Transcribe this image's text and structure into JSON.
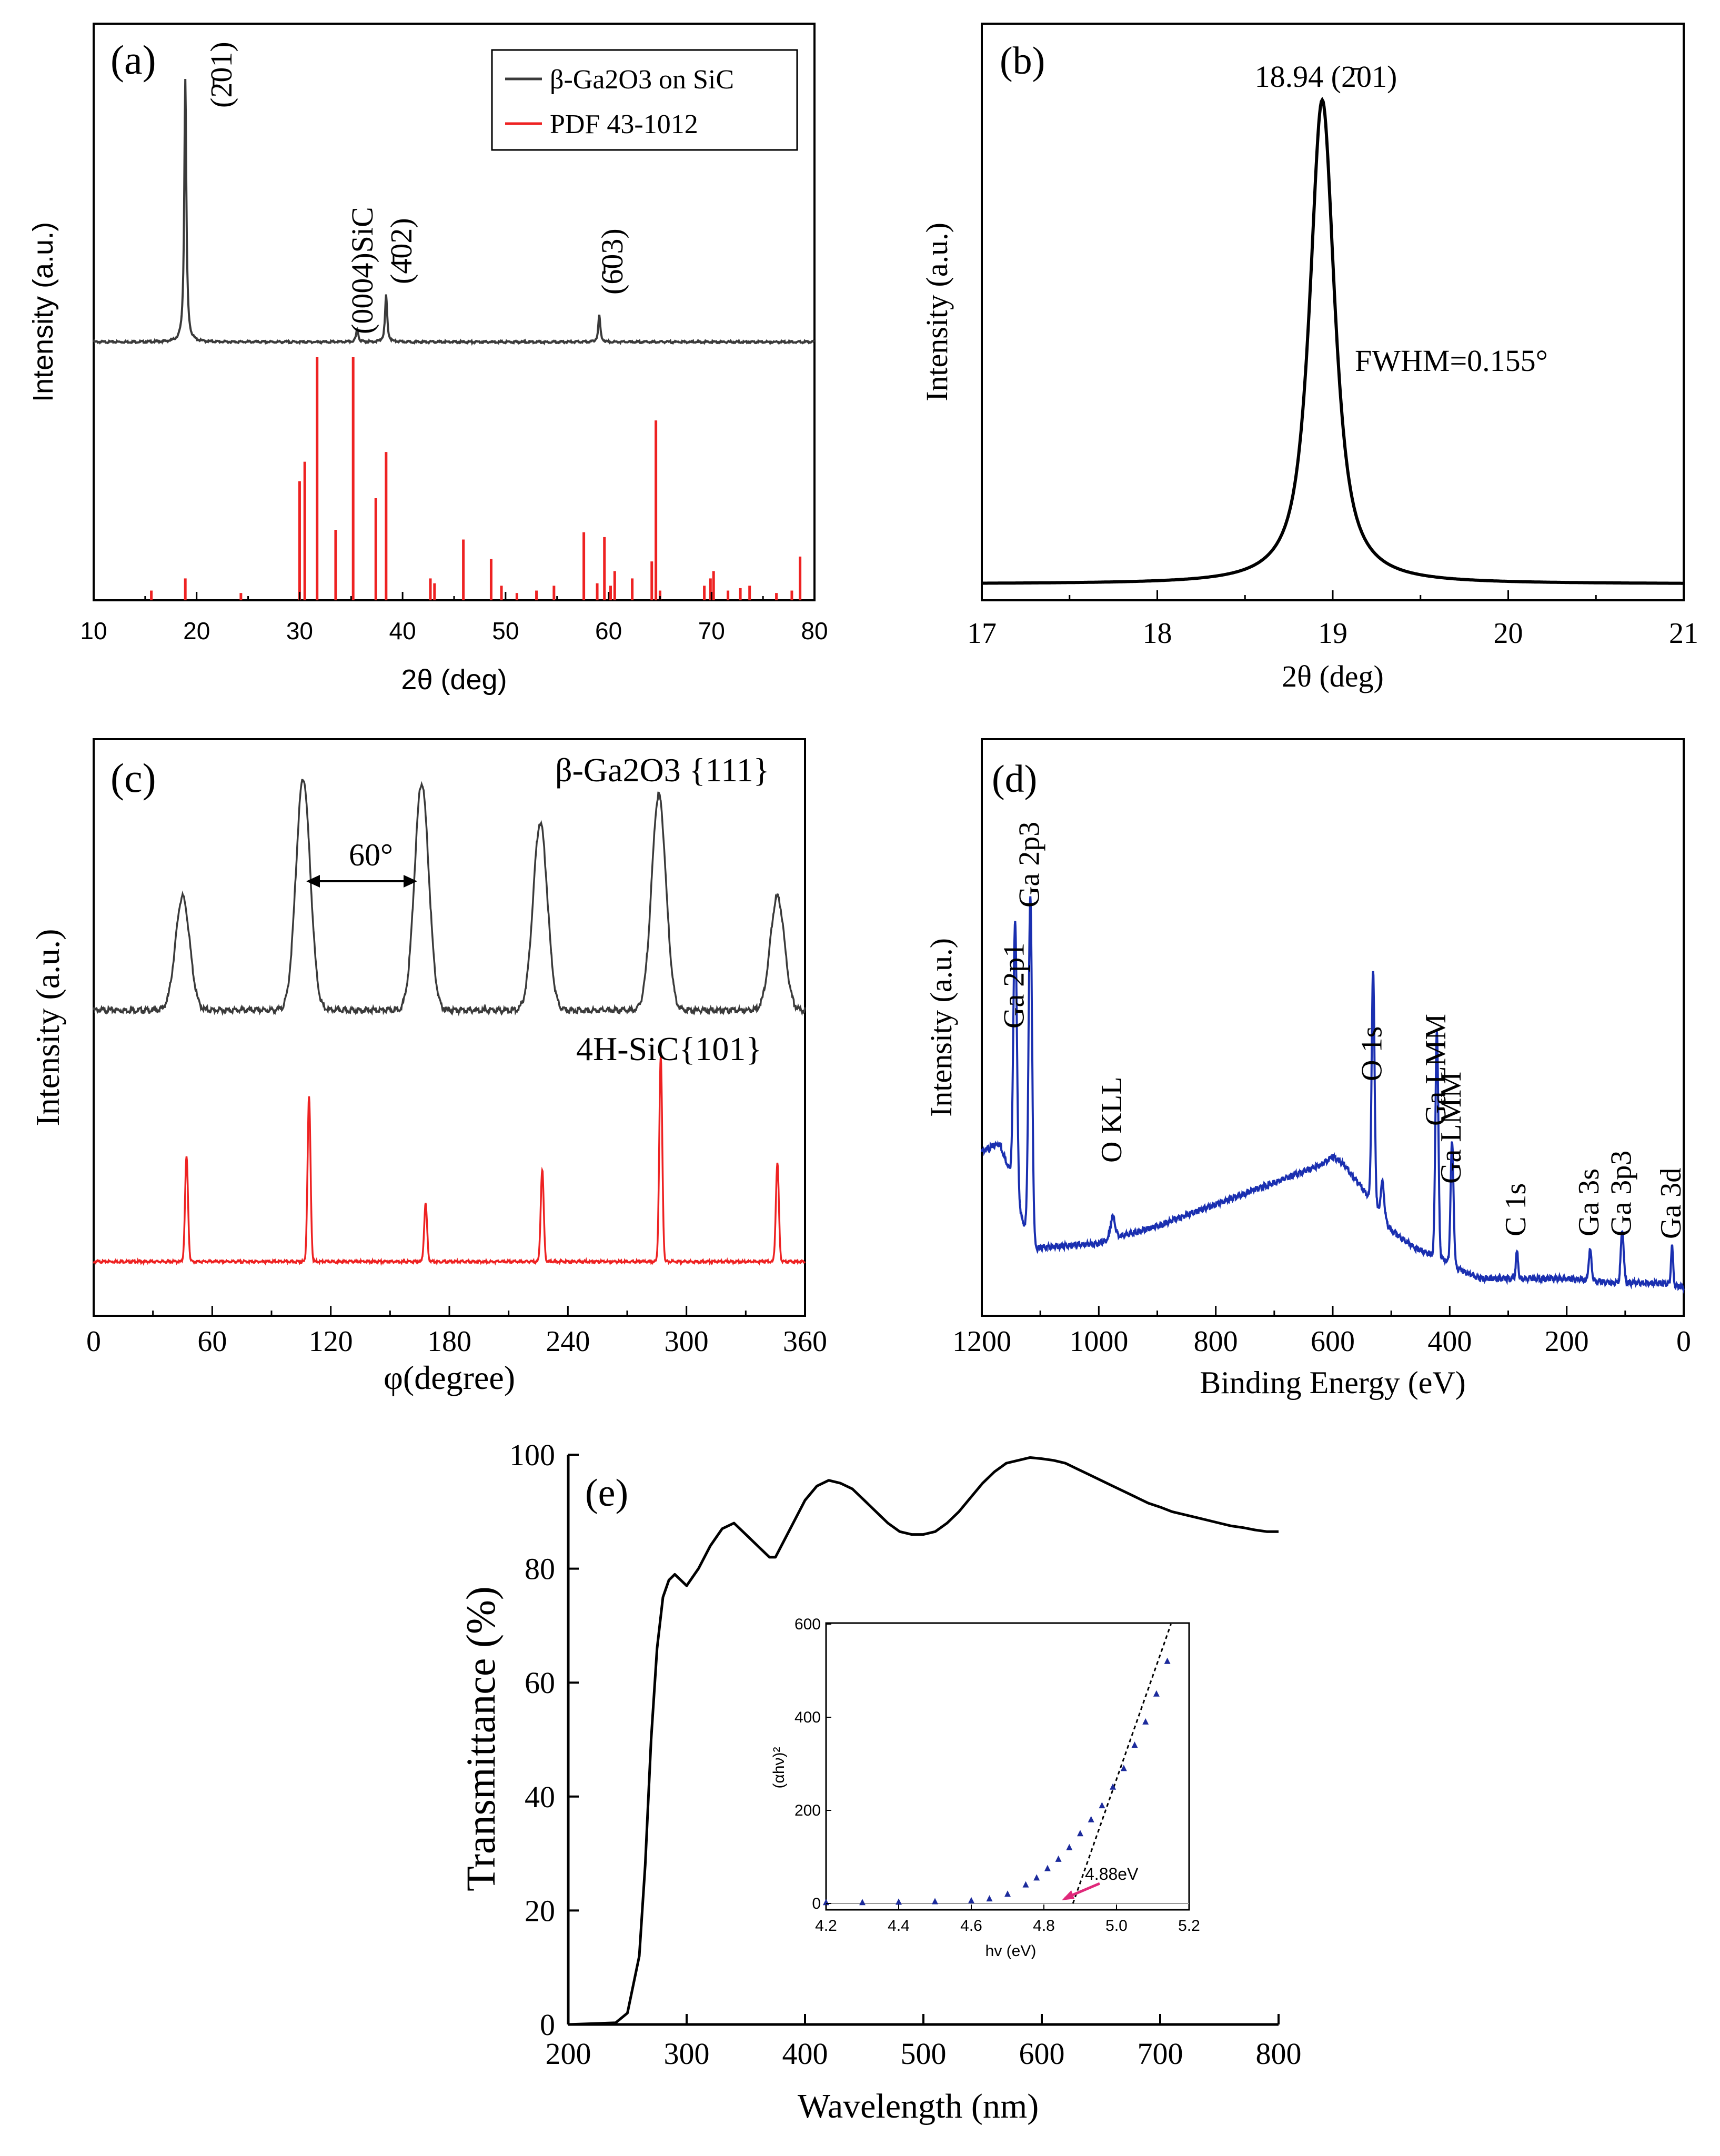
{
  "chart_data": [
    {
      "panel": "(a)",
      "type": "line",
      "xlabel": "2θ (deg)",
      "ylabel": "Intensity (a.u.)",
      "xlim": [
        10,
        80
      ],
      "xticks": [
        "10",
        "20",
        "30",
        "40",
        "50",
        "60",
        "70",
        "80"
      ],
      "legend": {
        "placement": "top-right",
        "entries": [
          {
            "label": "β-Ga2O3 on SiC",
            "color": "#3a3a3a"
          },
          {
            "label": "PDF  43-1012",
            "color": "#ee2222"
          }
        ]
      },
      "series": [
        {
          "name": "β-Ga2O3 on SiC",
          "color": "#3a3a3a",
          "peaks": [
            {
              "x": 18.9,
              "h": 1.0,
              "label": "(2̄01)"
            },
            {
              "x": 35.6,
              "h": 0.05,
              "label": "(0004)SiC"
            },
            {
              "x": 38.4,
              "h": 0.18,
              "label": "(4̄02)"
            },
            {
              "x": 59.1,
              "h": 0.1,
              "label": "(6̄03)"
            }
          ]
        },
        {
          "name": "PDF  43-1012",
          "type": "stick",
          "color": "#ee2222",
          "sticks": [
            [
              15.6,
              0.04
            ],
            [
              18.9,
              0.09
            ],
            [
              24.3,
              0.03
            ],
            [
              30.0,
              0.49
            ],
            [
              30.5,
              0.57
            ],
            [
              31.7,
              1.0
            ],
            [
              33.5,
              0.29
            ],
            [
              35.2,
              1.0
            ],
            [
              37.4,
              0.42
            ],
            [
              38.4,
              0.61
            ],
            [
              42.7,
              0.09
            ],
            [
              43.1,
              0.07
            ],
            [
              45.9,
              0.25
            ],
            [
              48.6,
              0.17
            ],
            [
              49.6,
              0.06
            ],
            [
              51.1,
              0.03
            ],
            [
              53.0,
              0.04
            ],
            [
              54.7,
              0.06
            ],
            [
              57.6,
              0.28
            ],
            [
              58.9,
              0.07
            ],
            [
              59.6,
              0.26
            ],
            [
              60.2,
              0.06
            ],
            [
              60.6,
              0.12
            ],
            [
              62.3,
              0.09
            ],
            [
              64.2,
              0.16
            ],
            [
              64.6,
              0.74
            ],
            [
              65.0,
              0.04
            ],
            [
              69.3,
              0.06
            ],
            [
              69.9,
              0.09
            ],
            [
              70.2,
              0.12
            ],
            [
              71.6,
              0.04
            ],
            [
              72.8,
              0.05
            ],
            [
              73.7,
              0.06
            ],
            [
              76.3,
              0.03
            ],
            [
              77.8,
              0.04
            ],
            [
              78.6,
              0.18
            ]
          ]
        }
      ]
    },
    {
      "panel": "(b)",
      "type": "line",
      "xlabel": "2θ (deg)",
      "ylabel": "Intensity (a.u.)",
      "xlim": [
        17,
        21
      ],
      "xticks": [
        "17",
        "18",
        "19",
        "20",
        "21"
      ],
      "peak": {
        "x": 18.94,
        "fwhm": 0.155,
        "label": "18.94 (2̄01)"
      },
      "annotation": "FWHM=0.155°"
    },
    {
      "panel": "(c)",
      "type": "line",
      "xlabel": "φ(degree)",
      "ylabel": "Intensity (a.u.)",
      "xlim": [
        0,
        360
      ],
      "xticks": [
        "0",
        "60",
        "120",
        "180",
        "240",
        "300",
        "360"
      ],
      "annotation": "60°",
      "series": [
        {
          "name": "β-Ga2O3 {111}",
          "color": "#3a3a3a",
          "peaks": [
            [
              45,
              0.49
            ],
            [
              106,
              1.0
            ],
            [
              166,
              0.98
            ],
            [
              226,
              0.81
            ],
            [
              286,
              0.93
            ],
            [
              346,
              0.49
            ]
          ]
        },
        {
          "name": "4H-SiC{101}",
          "color": "#ee2222",
          "peaks": [
            [
              47,
              0.51
            ],
            [
              109,
              0.8
            ],
            [
              168,
              0.28
            ],
            [
              227,
              0.45
            ],
            [
              287,
              1.0
            ],
            [
              346,
              0.48
            ]
          ]
        }
      ]
    },
    {
      "panel": "(d)",
      "type": "line",
      "xlabel": "Binding Energy (eV)",
      "ylabel": "Intensity (a.u.)",
      "xlim": [
        1200,
        0
      ],
      "xticks": [
        "1200",
        "1000",
        "800",
        "600",
        "400",
        "200",
        "0"
      ],
      "peak_labels": [
        {
          "x": 1143,
          "label": "Ga 2p1"
        },
        {
          "x": 1117,
          "label": "Ga 2p3"
        },
        {
          "x": 976,
          "label": "O KLL"
        },
        {
          "x": 531,
          "label": "O 1s"
        },
        {
          "x": 422,
          "label": "Ga LMM"
        },
        {
          "x": 396,
          "label": "Ga LMM"
        },
        {
          "x": 285,
          "label": "C 1s"
        },
        {
          "x": 160,
          "label": "Ga 3s"
        },
        {
          "x": 105,
          "label": "Ga 3p3"
        },
        {
          "x": 20,
          "label": "Ga 3d"
        }
      ]
    },
    {
      "panel": "(e)",
      "type": "line",
      "xlabel": "Wavelength (nm)",
      "ylabel": "Transmittance (%)",
      "xlim": [
        200,
        800
      ],
      "ylim": [
        0,
        100
      ],
      "xticks": [
        "200",
        "300",
        "400",
        "500",
        "600",
        "700",
        "800"
      ],
      "yticks": [
        "0",
        "20",
        "40",
        "60",
        "80",
        "100"
      ],
      "x": [
        200,
        240,
        250,
        260,
        265,
        270,
        275,
        280,
        285,
        290,
        300,
        310,
        320,
        330,
        340,
        345,
        350,
        360,
        370,
        375,
        380,
        390,
        400,
        410,
        420,
        430,
        440,
        450,
        460,
        470,
        480,
        490,
        500,
        510,
        520,
        530,
        540,
        550,
        560,
        570,
        580,
        590,
        600,
        610,
        620,
        630,
        640,
        650,
        660,
        670,
        680,
        690,
        700,
        710,
        720,
        730,
        740,
        750,
        760,
        770,
        780,
        790,
        800
      ],
      "y": [
        0,
        0.3,
        2,
        12,
        28,
        50,
        66,
        75,
        78,
        79,
        77,
        80,
        84,
        87,
        88,
        87,
        86,
        84,
        82,
        82,
        84,
        88,
        92,
        94.5,
        95.5,
        95,
        94,
        92,
        90,
        88,
        86.5,
        86,
        86,
        86.5,
        88,
        90,
        92.5,
        95,
        97,
        98.5,
        99,
        99.5,
        99.3,
        99,
        98.5,
        97.5,
        96.5,
        95.5,
        94.5,
        93.5,
        92.5,
        91.5,
        90.8,
        90,
        89.5,
        89,
        88.5,
        88,
        87.5,
        87.2,
        86.8,
        86.5,
        86.5
      ],
      "inset": {
        "xlabel": "hv (eV)",
        "ylabel": "(αhν)²",
        "xlim": [
          4.2,
          5.2
        ],
        "ylim": [
          0,
          600
        ],
        "xticks": [
          "4.2",
          "4.4",
          "4.6",
          "4.8",
          "5.0",
          "5.2"
        ],
        "yticks": [
          "0",
          "200",
          "400",
          "600"
        ],
        "x": [
          4.2,
          4.3,
          4.4,
          4.5,
          4.6,
          4.65,
          4.7,
          4.75,
          4.78,
          4.81,
          4.84,
          4.87,
          4.9,
          4.93,
          4.96,
          4.99,
          5.02,
          5.05,
          5.08,
          5.11,
          5.14
        ],
        "y": [
          2,
          2,
          3,
          4,
          6,
          10,
          20,
          40,
          55,
          75,
          95,
          120,
          150,
          180,
          210,
          250,
          290,
          340,
          390,
          450,
          520
        ],
        "fit_line": {
          "x": [
            4.88,
            5.15
          ],
          "y": [
            0,
            600
          ]
        },
        "annotation": "4.88eV"
      }
    }
  ]
}
